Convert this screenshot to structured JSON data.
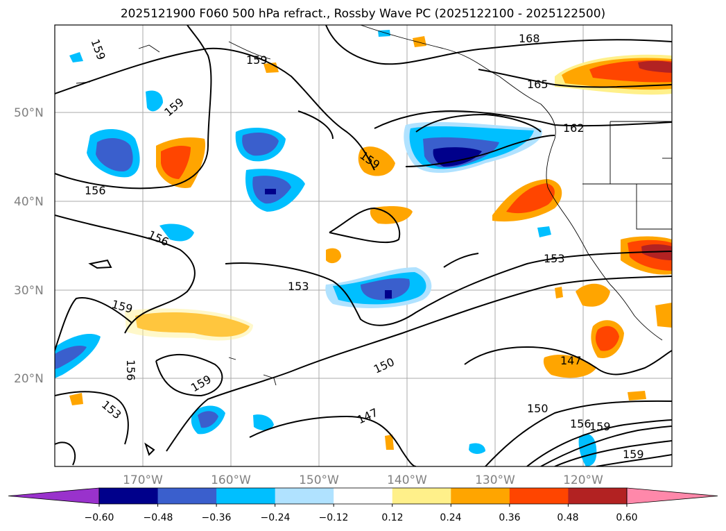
{
  "title": "2025121900 F060 500 hPa refract., Rossby Wave PC (2025122100 - 2025122500)",
  "lat_labels": [
    "50°N",
    "40°N",
    "30°N",
    "20°N"
  ],
  "lon_labels": [
    "170°W",
    "160°W",
    "150°W",
    "140°W",
    "130°W",
    "120°W"
  ],
  "contour_labels": [
    "168",
    "165",
    "162",
    "159",
    "159",
    "159",
    "159",
    "156",
    "156",
    "156",
    "153",
    "153",
    "153",
    "150",
    "150",
    "147",
    "147",
    "156",
    "159",
    "159",
    "159",
    "159"
  ],
  "colorbar": {
    "ticks": [
      "−0.60",
      "−0.48",
      "−0.36",
      "−0.24",
      "−0.12",
      "0.12",
      "0.24",
      "0.36",
      "0.48",
      "0.60"
    ],
    "colors": {
      "below_min": "#9932cc",
      "c1": "#00008b",
      "c2": "#3a5fcd",
      "c3": "#00bfff",
      "c4": "#b0e2ff",
      "c5": "#ffffff",
      "c6": "#fff08a",
      "c7": "#ffa500",
      "c8": "#ff4500",
      "c9": "#b22222",
      "above_max": "#ff88aa"
    }
  }
}
